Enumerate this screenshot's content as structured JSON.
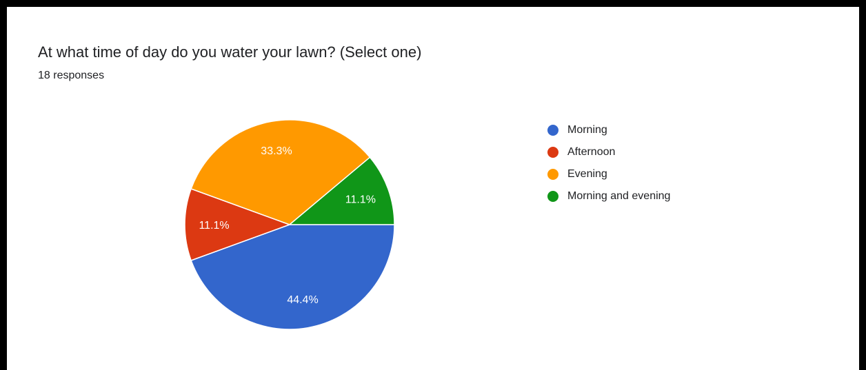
{
  "card": {
    "question": "At what time of day do you water your lawn? (Select one)",
    "responses": "18 responses"
  },
  "chart_data": {
    "type": "pie",
    "title": "At what time of day do you water your lawn? (Select one)",
    "categories": [
      "Morning",
      "Afternoon",
      "Evening",
      "Morning and evening"
    ],
    "values": [
      44.4,
      11.1,
      33.3,
      11.1
    ],
    "labels": [
      "44.4%",
      "11.1%",
      "33.3%",
      "11.1%"
    ],
    "colors": [
      "#3366cc",
      "#dc3912",
      "#ff9900",
      "#109618"
    ],
    "legend_position": "right"
  },
  "legend": {
    "items": [
      {
        "label": "Morning",
        "color": "#3366cc"
      },
      {
        "label": "Afternoon",
        "color": "#dc3912"
      },
      {
        "label": "Evening",
        "color": "#ff9900"
      },
      {
        "label": "Morning and evening",
        "color": "#109618"
      }
    ]
  }
}
